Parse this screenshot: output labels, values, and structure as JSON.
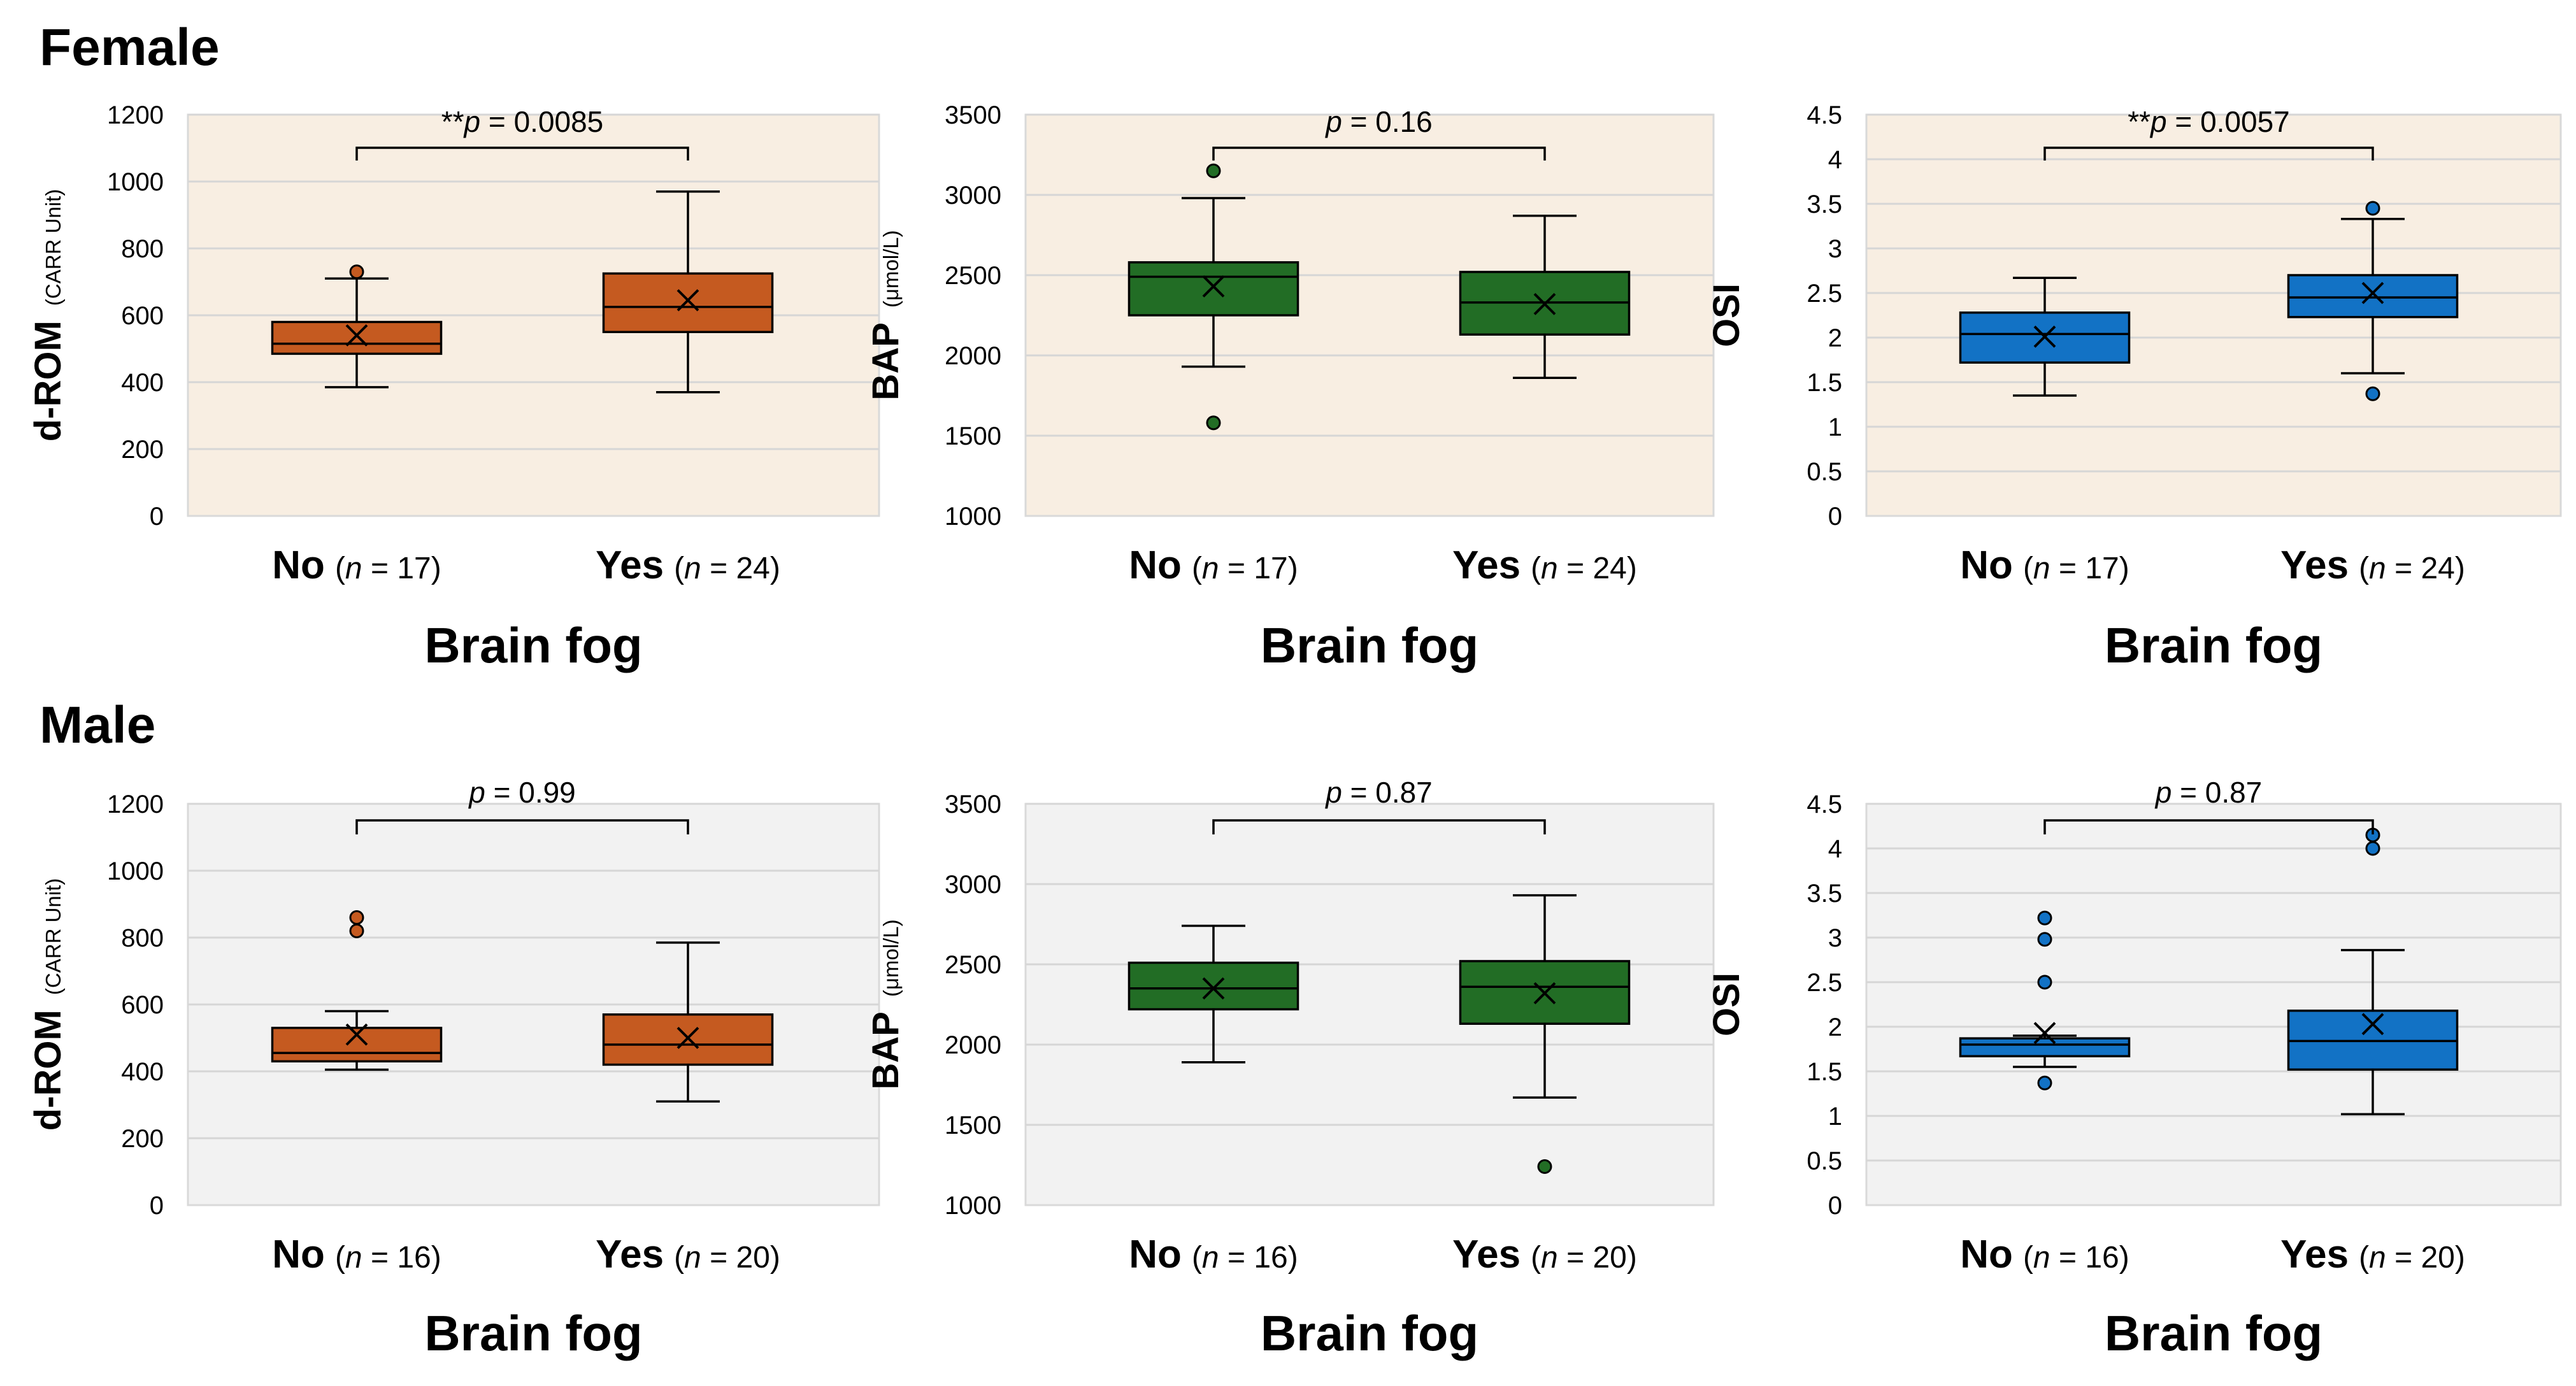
{
  "sections": [
    {
      "title": "Female",
      "bg": "#f8eee2"
    },
    {
      "title": "Male",
      "bg": "#f2f2f2"
    }
  ],
  "colors": {
    "dROM": "#c55a20",
    "BAP": "#226d25",
    "OSI": "#1272c5",
    "grid": "#d6d6d6"
  },
  "chart_data": [
    {
      "id": "female-drom",
      "type": "box",
      "section": "Female",
      "ylabel": "d-ROM",
      "yunit": "(CARR Unit)",
      "ylim": [
        0,
        1200
      ],
      "yticks": [
        "0",
        "200",
        "400",
        "600",
        "800",
        "1000",
        "1200"
      ],
      "xlabel": "Brain fog",
      "color_key": "dROM",
      "annotation": {
        "stars": "**",
        "p_label": "p",
        "p_value": " = 0.0085"
      },
      "groups": [
        {
          "name": "No",
          "n_prefix": "(",
          "n_label": "n",
          "n_value": " = 17)",
          "min": 385,
          "q1": 485,
          "median": 515,
          "q3": 580,
          "max": 710,
          "mean": 540,
          "outliers": [
            730
          ]
        },
        {
          "name": "Yes",
          "n_prefix": "(",
          "n_label": "n",
          "n_value": " = 24)",
          "min": 370,
          "q1": 550,
          "median": 625,
          "q3": 725,
          "max": 970,
          "mean": 645,
          "outliers": []
        }
      ]
    },
    {
      "id": "female-bap",
      "type": "box",
      "section": "Female",
      "ylabel": "BAP",
      "yunit": "(μmol/L)",
      "ylim": [
        1000,
        3500
      ],
      "yticks": [
        "1000",
        "1500",
        "2000",
        "2500",
        "3000",
        "3500"
      ],
      "xlabel": "Brain fog",
      "color_key": "BAP",
      "annotation": {
        "stars": "",
        "p_label": "p",
        "p_value": " = 0.16"
      },
      "groups": [
        {
          "name": "No",
          "n_prefix": "(",
          "n_label": "n",
          "n_value": " = 17)",
          "min": 1930,
          "q1": 2250,
          "median": 2490,
          "q3": 2580,
          "max": 2980,
          "mean": 2430,
          "outliers": [
            3150,
            1580
          ]
        },
        {
          "name": "Yes",
          "n_prefix": "(",
          "n_label": "n",
          "n_value": " = 24)",
          "min": 1860,
          "q1": 2130,
          "median": 2330,
          "q3": 2520,
          "max": 2870,
          "mean": 2320,
          "outliers": []
        }
      ]
    },
    {
      "id": "female-osi",
      "type": "box",
      "section": "Female",
      "ylabel": "OSI",
      "yunit": "",
      "ylim": [
        0,
        4.5
      ],
      "yticks": [
        "0",
        "0.5",
        "1",
        "1.5",
        "2",
        "2.5",
        "3",
        "3.5",
        "4",
        "4.5"
      ],
      "xlabel": "Brain fog",
      "color_key": "OSI",
      "annotation": {
        "stars": "**",
        "p_label": "p",
        "p_value": " = 0.0057"
      },
      "groups": [
        {
          "name": "No",
          "n_prefix": "(",
          "n_label": "n",
          "n_value": " = 17)",
          "min": 1.35,
          "q1": 1.72,
          "median": 2.04,
          "q3": 2.28,
          "max": 2.67,
          "mean": 2.01,
          "outliers": []
        },
        {
          "name": "Yes",
          "n_prefix": "(",
          "n_label": "n",
          "n_value": " = 24)",
          "min": 1.6,
          "q1": 2.23,
          "median": 2.45,
          "q3": 2.7,
          "max": 3.33,
          "mean": 2.5,
          "outliers": [
            3.45,
            1.37
          ]
        }
      ]
    },
    {
      "id": "male-drom",
      "type": "box",
      "section": "Male",
      "ylabel": "d-ROM",
      "yunit": "(CARR Unit)",
      "ylim": [
        0,
        1200
      ],
      "yticks": [
        "0",
        "200",
        "400",
        "600",
        "800",
        "1000",
        "1200"
      ],
      "xlabel": "Brain fog",
      "color_key": "dROM",
      "annotation": {
        "stars": "",
        "p_label": "p",
        "p_value": " = 0.99"
      },
      "groups": [
        {
          "name": "No",
          "n_prefix": "(",
          "n_label": "n",
          "n_value": " = 16)",
          "min": 405,
          "q1": 430,
          "median": 455,
          "q3": 530,
          "max": 580,
          "mean": 510,
          "outliers": [
            860,
            820
          ]
        },
        {
          "name": "Yes",
          "n_prefix": "(",
          "n_label": "n",
          "n_value": " = 20)",
          "min": 310,
          "q1": 420,
          "median": 480,
          "q3": 570,
          "max": 785,
          "mean": 500,
          "outliers": []
        }
      ]
    },
    {
      "id": "male-bap",
      "type": "box",
      "section": "Male",
      "ylabel": "BAP",
      "yunit": "(μmol/L)",
      "ylim": [
        1000,
        3500
      ],
      "yticks": [
        "1000",
        "1500",
        "2000",
        "2500",
        "3000",
        "3500"
      ],
      "xlabel": "Brain fog",
      "color_key": "BAP",
      "annotation": {
        "stars": "",
        "p_label": "p",
        "p_value": " = 0.87"
      },
      "groups": [
        {
          "name": "No",
          "n_prefix": "(",
          "n_label": "n",
          "n_value": " = 16)",
          "min": 1890,
          "q1": 2220,
          "median": 2350,
          "q3": 2510,
          "max": 2740,
          "mean": 2350,
          "outliers": []
        },
        {
          "name": "Yes",
          "n_prefix": "(",
          "n_label": "n",
          "n_value": " = 20)",
          "min": 1670,
          "q1": 2130,
          "median": 2360,
          "q3": 2520,
          "max": 2930,
          "mean": 2320,
          "outliers": [
            1240
          ]
        }
      ]
    },
    {
      "id": "male-osi",
      "type": "box",
      "section": "Male",
      "ylabel": "OSI",
      "yunit": "",
      "ylim": [
        0,
        4.5
      ],
      "yticks": [
        "0",
        "0.5",
        "1",
        "1.5",
        "2",
        "2.5",
        "3",
        "3.5",
        "4",
        "4.5"
      ],
      "xlabel": "Brain fog",
      "color_key": "OSI",
      "annotation": {
        "stars": "",
        "p_label": "p",
        "p_value": " = 0.87"
      },
      "groups": [
        {
          "name": "No",
          "n_prefix": "(",
          "n_label": "n",
          "n_value": " = 16)",
          "min": 1.55,
          "q1": 1.67,
          "median": 1.8,
          "q3": 1.87,
          "max": 1.9,
          "mean": 1.93,
          "outliers": [
            3.22,
            2.98,
            2.5,
            1.37
          ]
        },
        {
          "name": "Yes",
          "n_prefix": "(",
          "n_label": "n",
          "n_value": " = 20)",
          "min": 1.02,
          "q1": 1.52,
          "median": 1.84,
          "q3": 2.18,
          "max": 2.86,
          "mean": 2.03,
          "outliers": [
            4.15,
            4.0
          ]
        }
      ]
    }
  ]
}
